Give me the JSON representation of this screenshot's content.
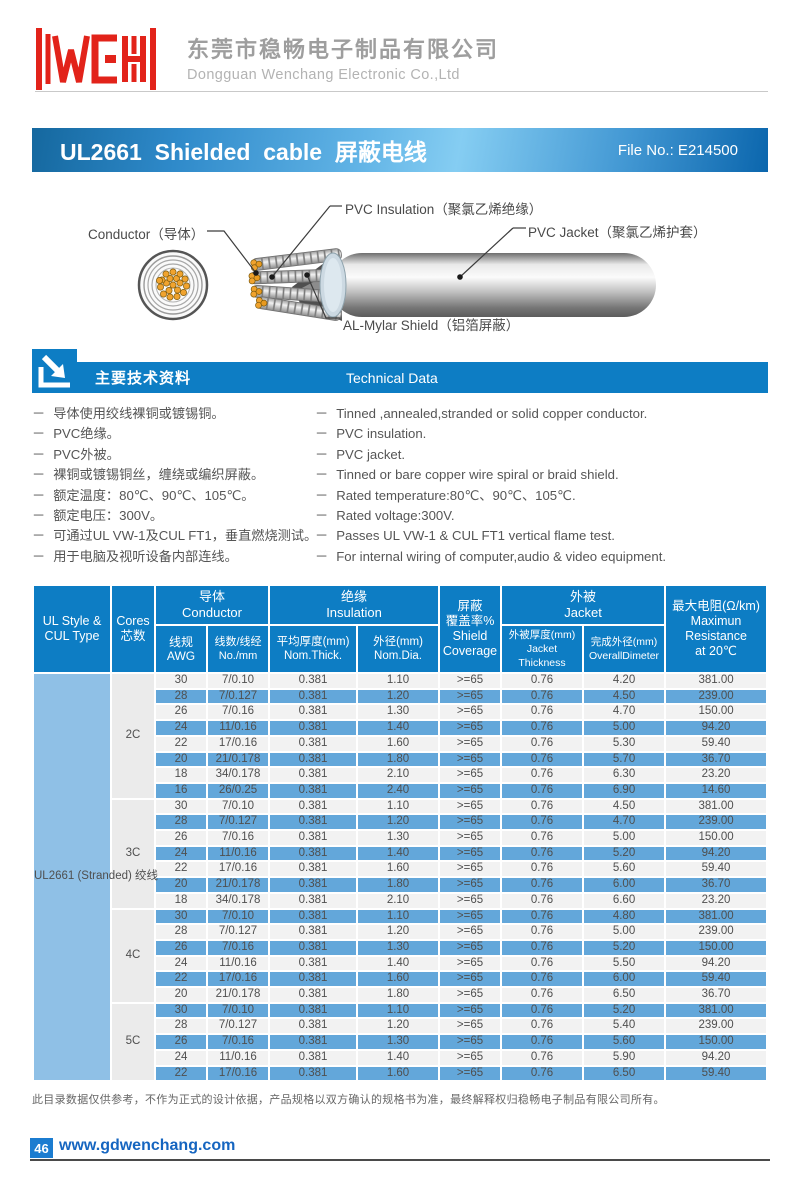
{
  "header": {
    "logo_name": "WCH",
    "company_cn": "东莞市稳畅电子制品有限公司",
    "company_en": "Dongguan Wenchang Electronic Co.,Ltd"
  },
  "title_bar": {
    "title": "UL2661  Shielded  cable  屏蔽电线",
    "file_no": "File No.: E214500"
  },
  "diagram": {
    "labels": {
      "conductor": "Conductor（导体）",
      "insulation": "PVC Insulation（聚氯乙烯绝缘）",
      "jacket": "PVC Jacket（聚氯乙烯护套）",
      "shield": "AL-Mylar Shield（铝箔屏蔽）"
    }
  },
  "section": {
    "title_cn": "主要技术资料",
    "title_en": "Technical Data"
  },
  "features": {
    "bullet": "－",
    "cn": [
      "导体使用绞线裸铜或镀锡铜。",
      "PVC绝缘。",
      "PVC外被。",
      "裸铜或镀锡铜丝，缠绕或编织屏蔽。",
      "额定温度：80℃、90℃、105℃。",
      "额定电压：300V。",
      "可通过UL  VW-1及CUL  FT1，垂直燃烧测试。",
      "用于电脑及视听设备内部连线。"
    ],
    "en": [
      "Tinned ,annealed,stranded or solid copper conductor.",
      "PVC insulation.",
      "PVC jacket.",
      "Tinned or bare copper wire spiral or braid shield.",
      "Rated temperature:80℃、90℃、105℃.",
      "Rated voltage:300V.",
      "Passes UL VW-1 & CUL FT1 vertical flame test.",
      "For internal wiring of computer,audio & video equipment."
    ]
  },
  "table": {
    "header": {
      "ul_style": "UL Style &\nCUL Type",
      "cores": "Cores\n芯数",
      "conductor_group": "导体\nConductor",
      "awg": "线规\nAWG",
      "no_mm": "线数/线经\nNo./mm",
      "insulation_group": "绝缘\nInsulation",
      "nom_thick": "平均厚度(mm)\nNom.Thick.",
      "nom_dia": "外径(mm)\nNom.Dia.",
      "shield": "屏蔽\n覆盖率%\nShield\nCoverage",
      "jacket_group": "外被\nJacket",
      "jacket_thickness": "外被厚度(mm)\nJacket Thickness",
      "overall_diameter": "完成外径(mm)\nOverallDimeter",
      "resistance": "最大电阻(Ω/km)\nMaximun\nResistance\nat 20℃"
    },
    "row_label": "UL2661\n(Stranded)\n绞线",
    "column_names": [
      "awg",
      "no-mm",
      "nom-thick",
      "nom-dia",
      "shield-coverage",
      "jacket-thickness",
      "overall-diameter",
      "max-resistance"
    ],
    "groups": [
      {
        "cores": "2C",
        "rows": [
          [
            "30",
            "7/0.10",
            "0.381",
            "1.10",
            ">=65",
            "0.76",
            "4.20",
            "381.00"
          ],
          [
            "28",
            "7/0.127",
            "0.381",
            "1.20",
            ">=65",
            "0.76",
            "4.50",
            "239.00"
          ],
          [
            "26",
            "7/0.16",
            "0.381",
            "1.30",
            ">=65",
            "0.76",
            "4.70",
            "150.00"
          ],
          [
            "24",
            "11/0.16",
            "0.381",
            "1.40",
            ">=65",
            "0.76",
            "5.00",
            "94.20"
          ],
          [
            "22",
            "17/0.16",
            "0.381",
            "1.60",
            ">=65",
            "0.76",
            "5.30",
            "59.40"
          ],
          [
            "20",
            "21/0.178",
            "0.381",
            "1.80",
            ">=65",
            "0.76",
            "5.70",
            "36.70"
          ],
          [
            "18",
            "34/0.178",
            "0.381",
            "2.10",
            ">=65",
            "0.76",
            "6.30",
            "23.20"
          ],
          [
            "16",
            "26/0.25",
            "0.381",
            "2.40",
            ">=65",
            "0.76",
            "6.90",
            "14.60"
          ]
        ]
      },
      {
        "cores": "3C",
        "rows": [
          [
            "30",
            "7/0.10",
            "0.381",
            "1.10",
            ">=65",
            "0.76",
            "4.50",
            "381.00"
          ],
          [
            "28",
            "7/0.127",
            "0.381",
            "1.20",
            ">=65",
            "0.76",
            "4.70",
            "239.00"
          ],
          [
            "26",
            "7/0.16",
            "0.381",
            "1.30",
            ">=65",
            "0.76",
            "5.00",
            "150.00"
          ],
          [
            "24",
            "11/0.16",
            "0.381",
            "1.40",
            ">=65",
            "0.76",
            "5.20",
            "94.20"
          ],
          [
            "22",
            "17/0.16",
            "0.381",
            "1.60",
            ">=65",
            "0.76",
            "5.60",
            "59.40"
          ],
          [
            "20",
            "21/0.178",
            "0.381",
            "1.80",
            ">=65",
            "0.76",
            "6.00",
            "36.70"
          ],
          [
            "18",
            "34/0.178",
            "0.381",
            "2.10",
            ">=65",
            "0.76",
            "6.60",
            "23.20"
          ]
        ]
      },
      {
        "cores": "4C",
        "rows": [
          [
            "30",
            "7/0.10",
            "0.381",
            "1.10",
            ">=65",
            "0.76",
            "4.80",
            "381.00"
          ],
          [
            "28",
            "7/0.127",
            "0.381",
            "1.20",
            ">=65",
            "0.76",
            "5.00",
            "239.00"
          ],
          [
            "26",
            "7/0.16",
            "0.381",
            "1.30",
            ">=65",
            "0.76",
            "5.20",
            "150.00"
          ],
          [
            "24",
            "11/0.16",
            "0.381",
            "1.40",
            ">=65",
            "0.76",
            "5.50",
            "94.20"
          ],
          [
            "22",
            "17/0.16",
            "0.381",
            "1.60",
            ">=65",
            "0.76",
            "6.00",
            "59.40"
          ],
          [
            "20",
            "21/0.178",
            "0.381",
            "1.80",
            ">=65",
            "0.76",
            "6.50",
            "36.70"
          ]
        ]
      },
      {
        "cores": "5C",
        "rows": [
          [
            "30",
            "7/0.10",
            "0.381",
            "1.10",
            ">=65",
            "0.76",
            "5.20",
            "381.00"
          ],
          [
            "28",
            "7/0.127",
            "0.381",
            "1.20",
            ">=65",
            "0.76",
            "5.40",
            "239.00"
          ],
          [
            "26",
            "7/0.16",
            "0.381",
            "1.30",
            ">=65",
            "0.76",
            "5.60",
            "150.00"
          ],
          [
            "24",
            "11/0.16",
            "0.381",
            "1.40",
            ">=65",
            "0.76",
            "5.90",
            "94.20"
          ],
          [
            "22",
            "17/0.16",
            "0.381",
            "1.60",
            ">=65",
            "0.76",
            "6.50",
            "59.40"
          ]
        ]
      }
    ]
  },
  "footer": {
    "note": "此目录数据仅供参考，不作为正式的设计依据，产品规格以双方确认的规格书为准，最终解释权归稳畅电子制品有限公司所有。",
    "page_number": "46",
    "website": "www.gdwenchang.com"
  },
  "colors": {
    "brand_red": "#e2231a",
    "section_blue": "#0d7dc4",
    "row_alt_blue": "#63a7da",
    "ul_cell_blue": "#8fc0e6",
    "link_blue": "#1565c0"
  }
}
